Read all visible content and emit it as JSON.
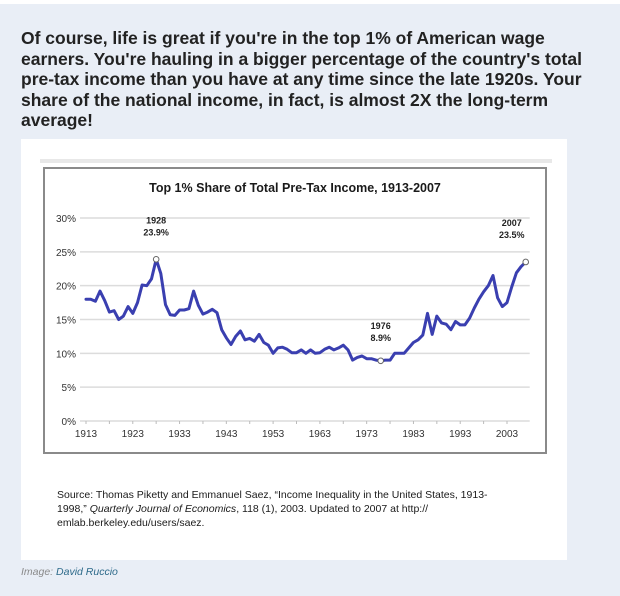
{
  "intro_text": "Of course, life is great if you're in the top 1% of American wage earners. You're hauling in a bigger percentage of the country's total pre-tax income than you have at any time since the late 1920s. Your share of the national income, in fact, is almost 2X the long-term average!",
  "source": {
    "prefix": "Source: Thomas Piketty and Emmanuel Saez, “Income Inequality in the United States, 1913-1998,” ",
    "journal": "Quarterly Journal of Economics",
    "suffix": ", 118 (1), 2003. Updated to 2007 at http:// emlab.berkeley.edu/users/saez."
  },
  "credit": {
    "label": "Image:",
    "author": "David Ruccio"
  },
  "colors": {
    "line": "#3a3fb0",
    "grid": "#dcdcdc",
    "background": "#e9eef6"
  },
  "chart_data": {
    "type": "line",
    "title": "Top 1% Share of Total Pre-Tax Income, 1913-2007",
    "xlabel": "",
    "ylabel": "",
    "xlim": [
      1913,
      2007
    ],
    "ylim": [
      0,
      30
    ],
    "grid": true,
    "legend": "none",
    "x_ticks": [
      1913,
      1923,
      1933,
      1943,
      1953,
      1963,
      1973,
      1983,
      1993,
      2003
    ],
    "y_ticks": [
      0,
      5,
      10,
      15,
      20,
      25,
      30
    ],
    "y_tick_labels": [
      "0%",
      "5%",
      "10%",
      "15%",
      "20%",
      "25%",
      "30%"
    ],
    "annotations": [
      {
        "x": 1928,
        "y": 23.9,
        "year_label": "1928",
        "value_label": "23.9%",
        "position": "above"
      },
      {
        "x": 1976,
        "y": 8.9,
        "year_label": "1976",
        "value_label": "8.9%",
        "position": "above"
      },
      {
        "x": 2007,
        "y": 23.5,
        "year_label": "2007",
        "value_label": "23.5%",
        "position": "above-left"
      }
    ],
    "series": [
      {
        "name": "Top 1% share",
        "x": [
          1913,
          1914,
          1915,
          1916,
          1917,
          1918,
          1919,
          1920,
          1921,
          1922,
          1923,
          1924,
          1925,
          1926,
          1927,
          1928,
          1929,
          1930,
          1931,
          1932,
          1933,
          1934,
          1935,
          1936,
          1937,
          1938,
          1939,
          1940,
          1941,
          1942,
          1943,
          1944,
          1945,
          1946,
          1947,
          1948,
          1949,
          1950,
          1951,
          1952,
          1953,
          1954,
          1955,
          1956,
          1957,
          1958,
          1959,
          1960,
          1961,
          1962,
          1963,
          1964,
          1965,
          1966,
          1967,
          1968,
          1969,
          1970,
          1971,
          1972,
          1973,
          1974,
          1975,
          1976,
          1977,
          1978,
          1979,
          1980,
          1981,
          1982,
          1983,
          1984,
          1985,
          1986,
          1987,
          1988,
          1989,
          1990,
          1991,
          1992,
          1993,
          1994,
          1995,
          1996,
          1997,
          1998,
          1999,
          2000,
          2001,
          2002,
          2003,
          2004,
          2005,
          2006,
          2007
        ],
        "values": [
          18.0,
          18.0,
          17.7,
          19.2,
          17.8,
          16.1,
          16.3,
          15.0,
          15.5,
          16.9,
          15.9,
          17.5,
          20.1,
          20.0,
          21.0,
          23.9,
          21.8,
          17.2,
          15.7,
          15.6,
          16.4,
          16.4,
          16.6,
          19.2,
          17.1,
          15.8,
          16.1,
          16.5,
          16.0,
          13.5,
          12.3,
          11.3,
          12.5,
          13.3,
          12.0,
          12.2,
          11.8,
          12.8,
          11.6,
          11.2,
          10.0,
          10.8,
          10.9,
          10.6,
          10.1,
          10.1,
          10.5,
          10.0,
          10.5,
          10.0,
          10.1,
          10.6,
          10.9,
          10.5,
          10.8,
          11.2,
          10.5,
          9.0,
          9.4,
          9.6,
          9.2,
          9.2,
          9.0,
          8.9,
          9.0,
          9.0,
          10.0,
          10.0,
          10.0,
          10.8,
          11.6,
          12.0,
          12.7,
          15.9,
          12.8,
          15.5,
          14.5,
          14.3,
          13.5,
          14.7,
          14.2,
          14.2,
          15.2,
          16.7,
          18.0,
          19.1,
          20.0,
          21.5,
          18.2,
          16.9,
          17.5,
          19.8,
          21.9,
          22.8,
          23.5
        ]
      }
    ]
  }
}
